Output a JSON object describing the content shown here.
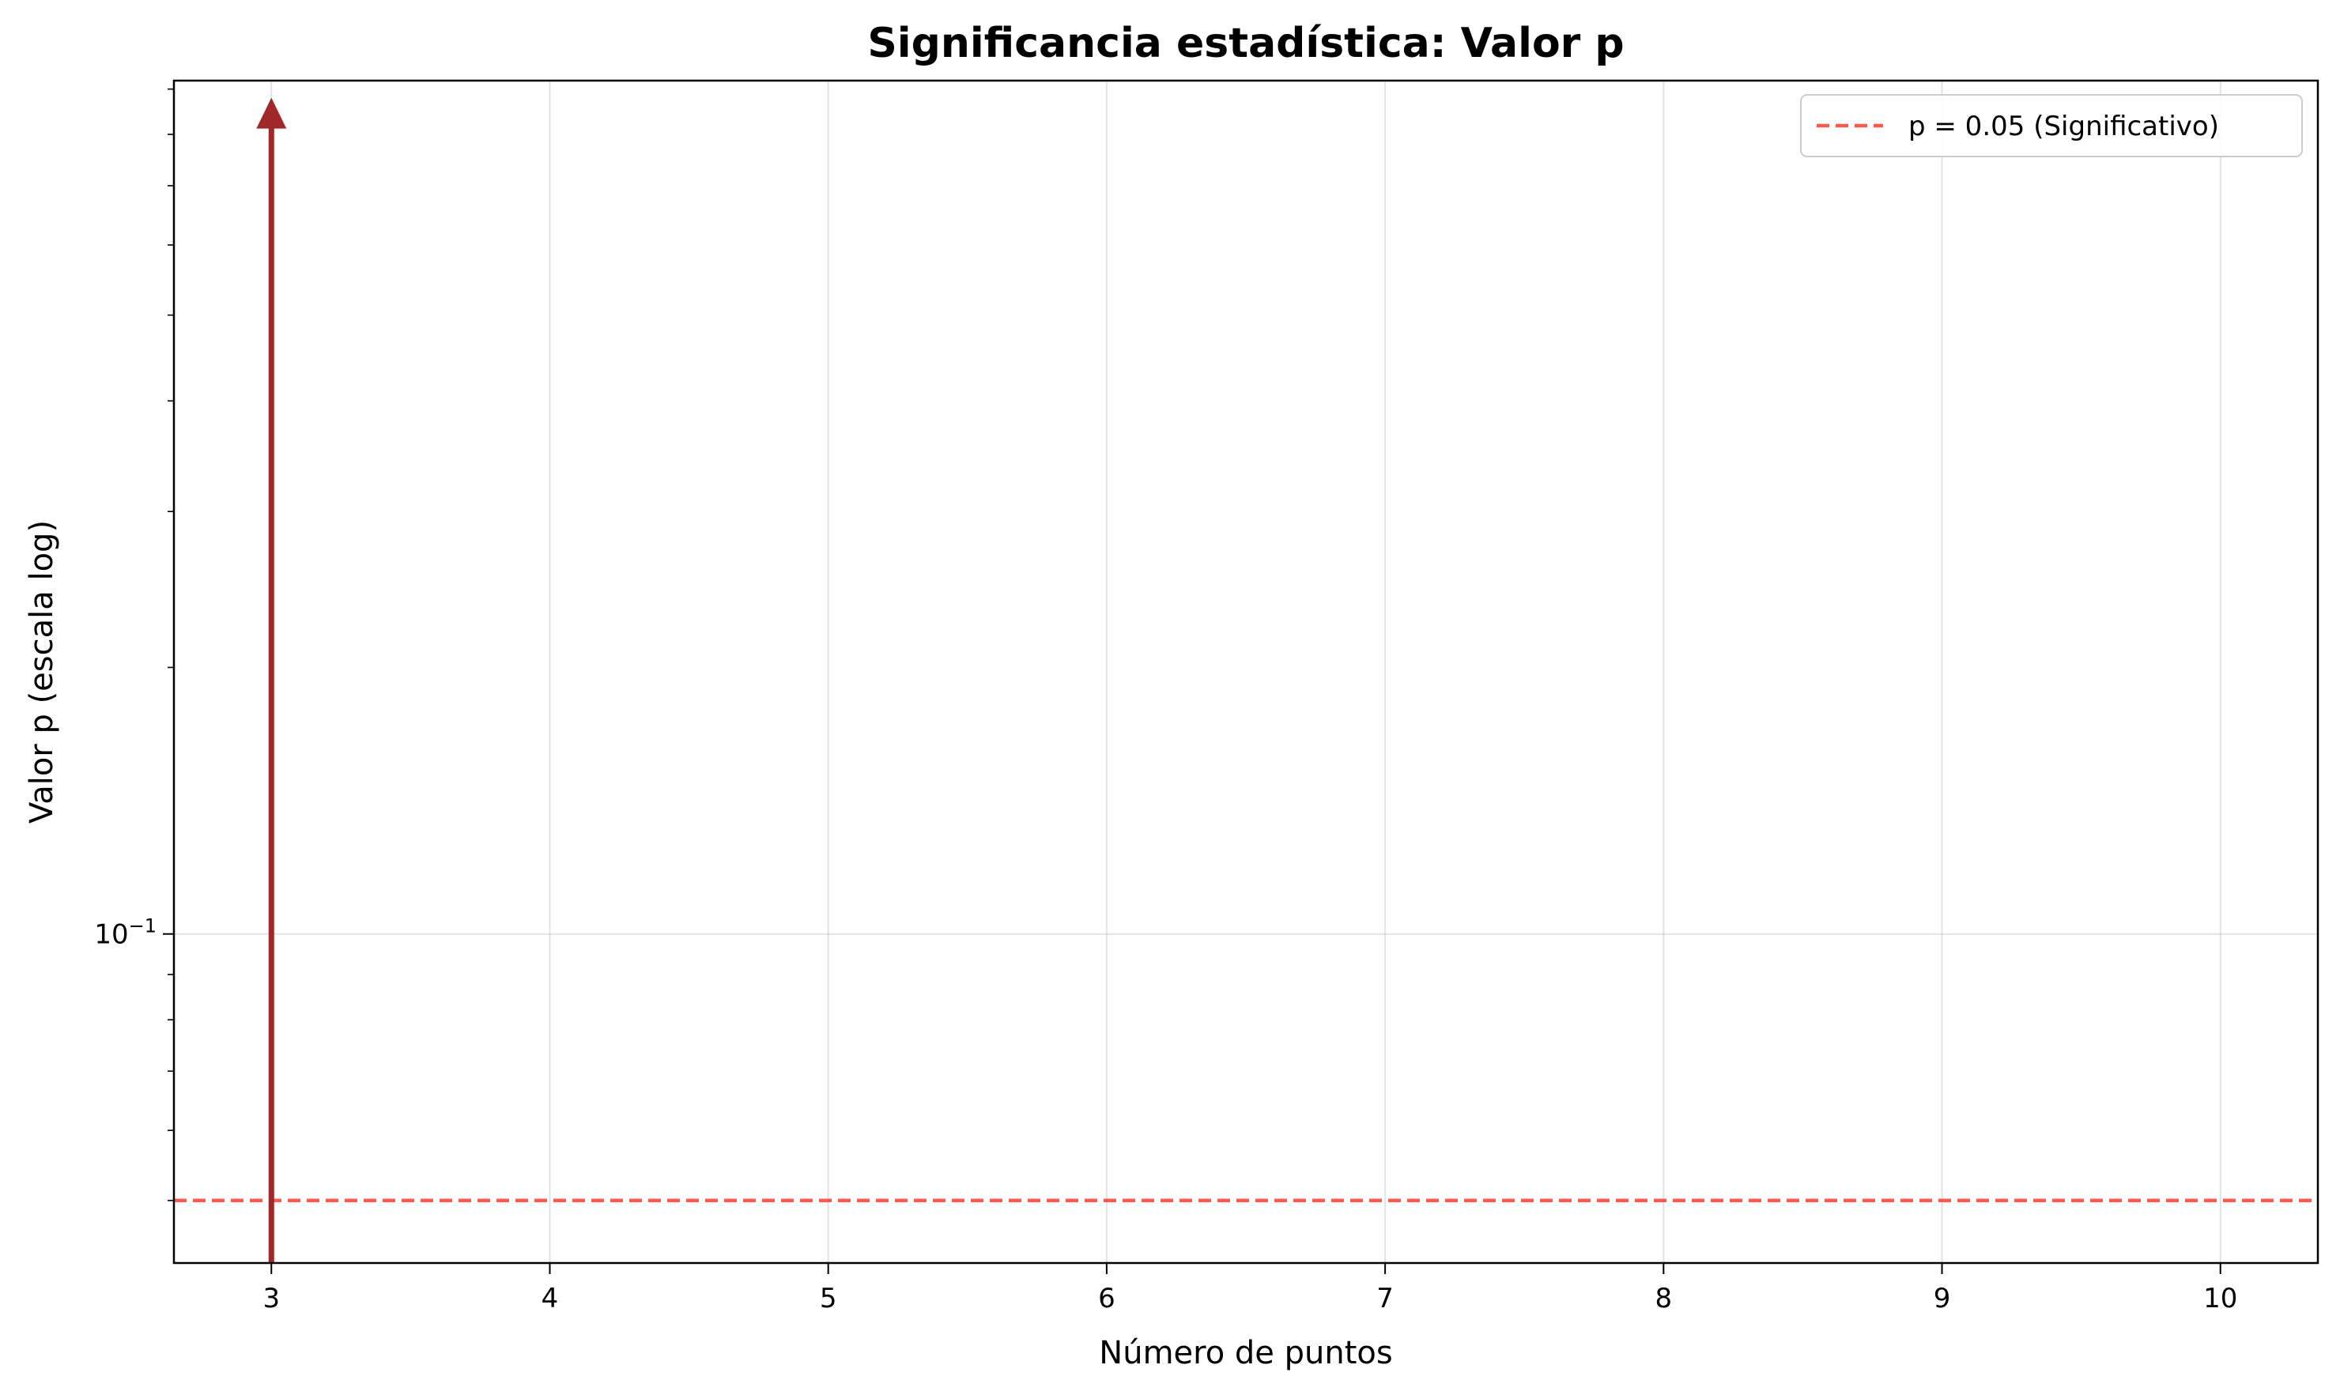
{
  "chart_data": {
    "type": "line",
    "title": "Significancia estadística: Valor p",
    "xlabel": "Número de puntos",
    "ylabel": "Valor p (escala log)",
    "x_ticks": [
      3,
      4,
      5,
      6,
      7,
      8,
      9,
      10
    ],
    "xlim": [
      2.65,
      10.35
    ],
    "yscale": "log",
    "ylim": [
      0.0425,
      0.92
    ],
    "y_major_ticks": [
      {
        "value": 0.1,
        "base": "10",
        "exponent": "−1"
      }
    ],
    "y_minor_ticks": [
      0.05,
      0.06,
      0.07,
      0.08,
      0.09,
      0.2,
      0.3,
      0.4,
      0.5,
      0.6,
      0.7,
      0.8,
      0.9
    ],
    "grid": true,
    "series": [
      {
        "color": "#a02828",
        "x": [
          3,
          3
        ],
        "y": [
          0.0425,
          0.88
        ],
        "note_arrow": true
      }
    ],
    "reference_lines": [
      {
        "name": "p = 0.05 (Significativo)",
        "y": 0.05,
        "color": "#ff3b30",
        "style": "dashed"
      }
    ],
    "legend_position": "top-right"
  }
}
